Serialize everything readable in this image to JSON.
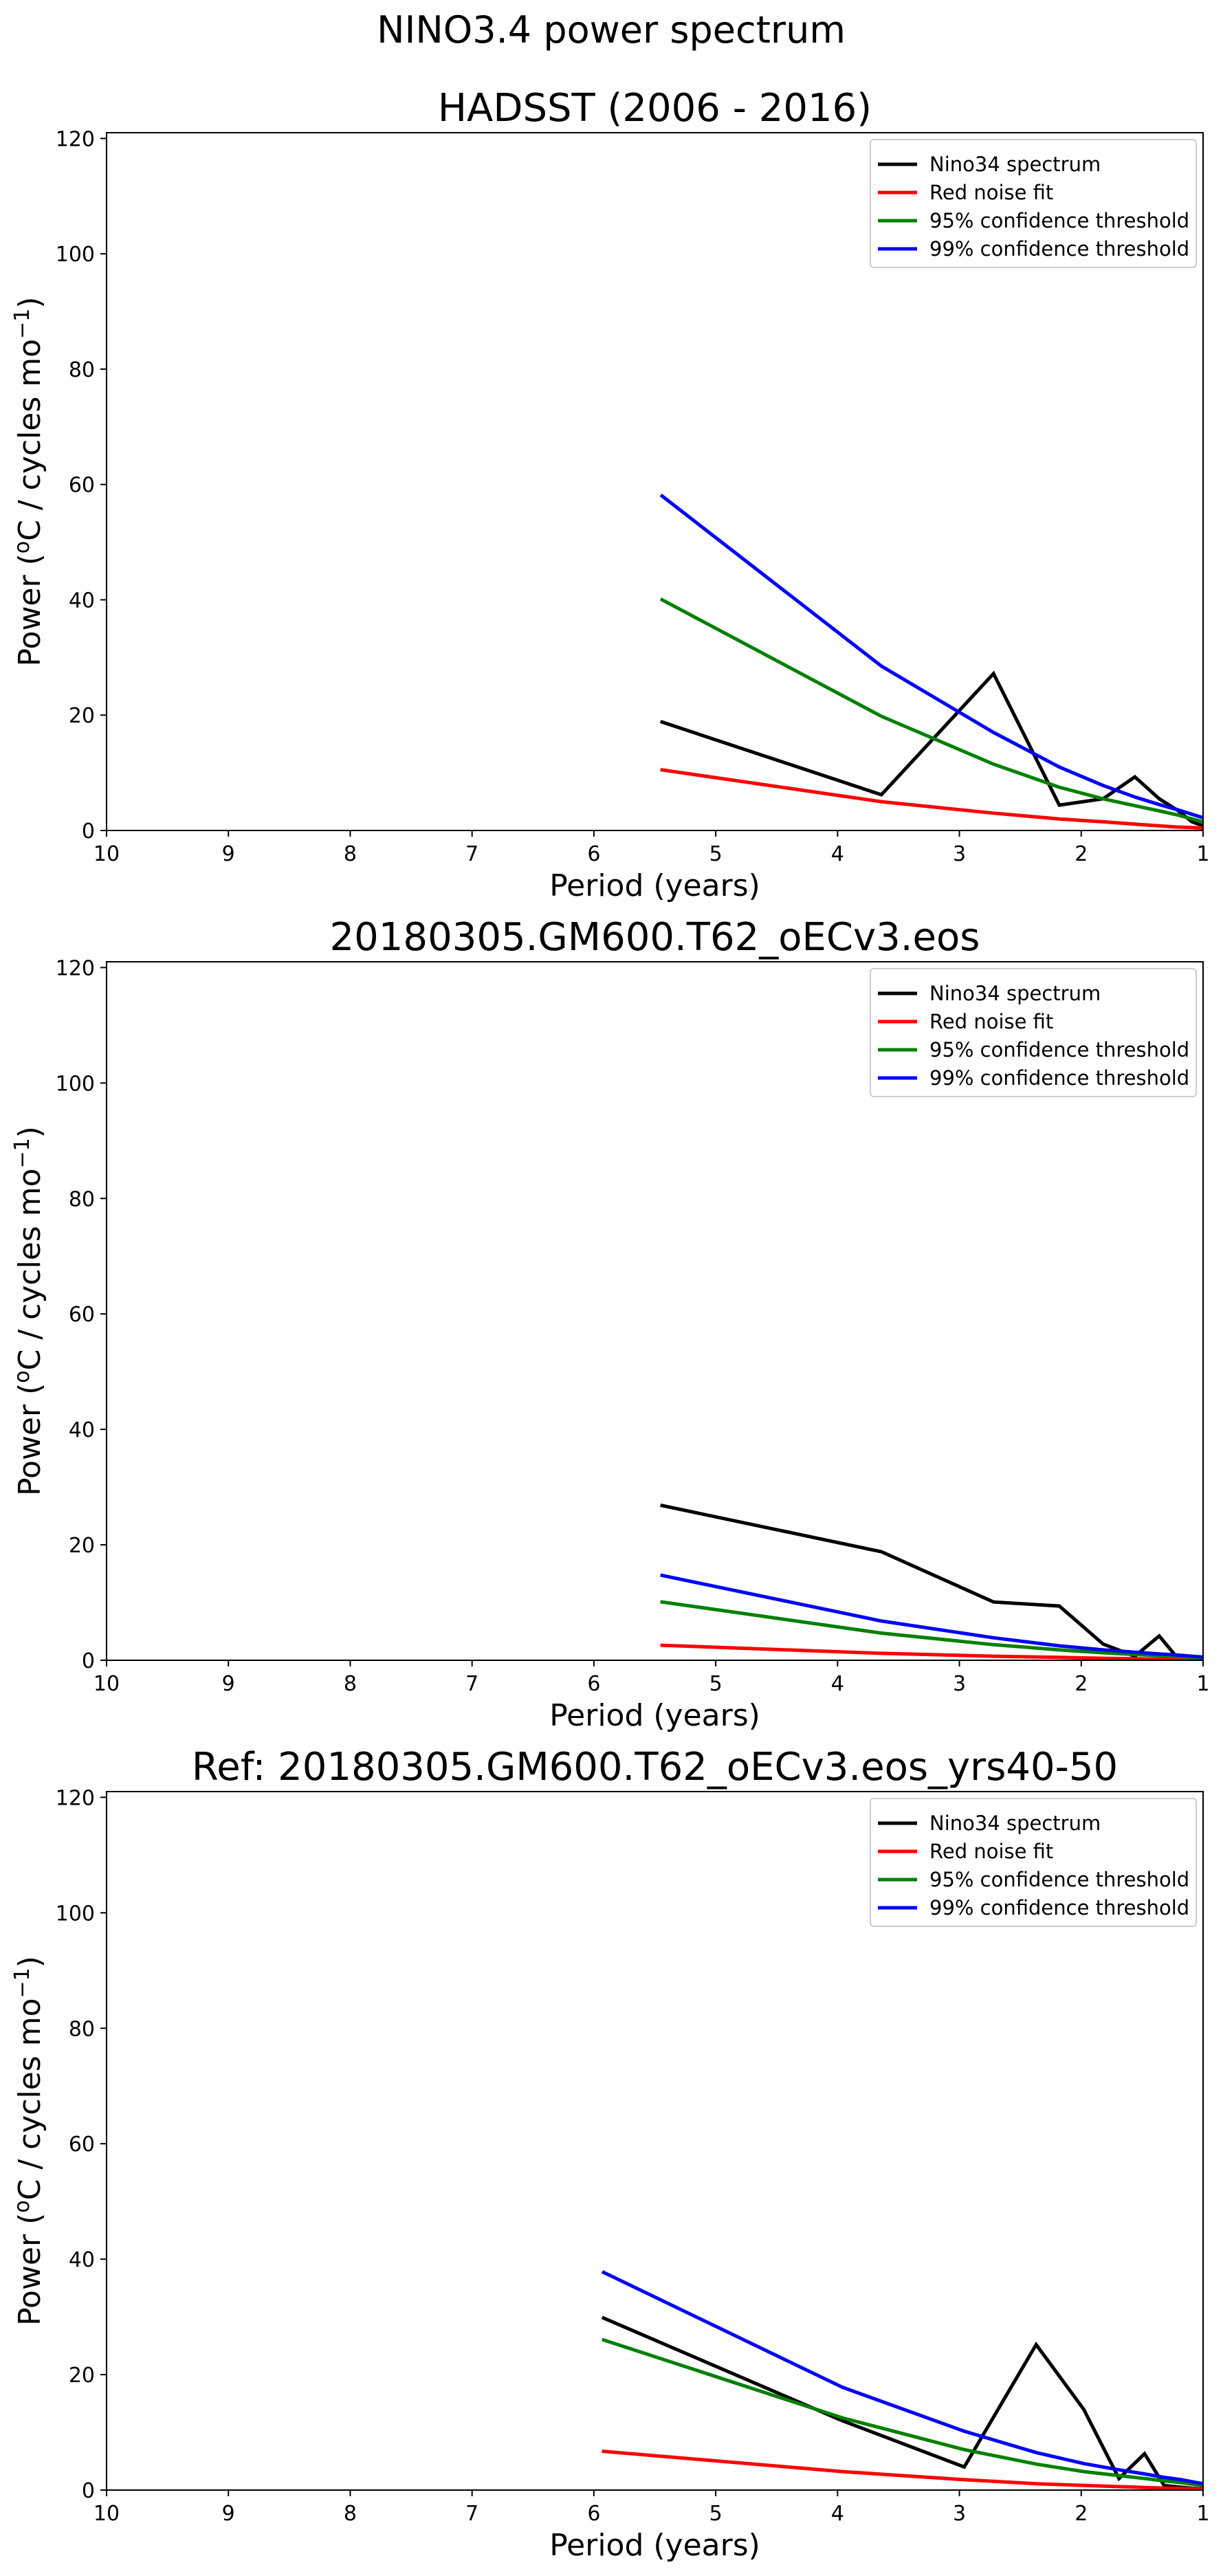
{
  "figure": {
    "suptitle": "NINO3.4 power spectrum"
  },
  "chart_data": [
    {
      "type": "line",
      "title": "HADSST (2006 - 2016)",
      "xlabel": "Period (years)",
      "ylabel": "Power (",
      "ylabel_sup1": "o",
      "ylabel_mid": "C / cycles mo",
      "ylabel_sup2": "−1",
      "ylabel_end": ")",
      "xlim": [
        10,
        1
      ],
      "ylim": [
        0,
        121
      ],
      "xticks": [
        10,
        9,
        8,
        7,
        6,
        5,
        4,
        3,
        2,
        1
      ],
      "xtick_labels": [
        "10",
        "9",
        "8",
        "7",
        "6",
        "5",
        "4",
        "3",
        "2",
        "1"
      ],
      "yticks": [
        0,
        20,
        40,
        60,
        80,
        100,
        120
      ],
      "ytick_labels": [
        "0",
        "20",
        "40",
        "60",
        "80",
        "100",
        "120"
      ],
      "grid": false,
      "legend": "upper-right",
      "series": [
        {
          "name": "Nino34 spectrum",
          "color": "#000000",
          "x": [
            5.44,
            3.64,
            2.72,
            2.18,
            1.82,
            1.56,
            1.36,
            1.21,
            1.09,
            1.0
          ],
          "y": [
            18.8,
            6.2,
            27.2,
            4.4,
            5.5,
            9.3,
            5.5,
            3.5,
            1.5,
            0.8
          ]
        },
        {
          "name": "Red noise fit",
          "color": "#ff0000",
          "x": [
            5.44,
            3.64,
            2.72,
            2.18,
            1.82,
            1.56,
            1.36,
            1.21,
            1.09,
            1.0
          ],
          "y": [
            10.5,
            5.0,
            3.0,
            2.0,
            1.5,
            1.1,
            0.8,
            0.6,
            0.5,
            0.4
          ]
        },
        {
          "name": "95% confidence threshold",
          "color": "#008000",
          "x": [
            5.44,
            3.64,
            2.72,
            2.18,
            1.82,
            1.56,
            1.36,
            1.21,
            1.09,
            1.0
          ],
          "y": [
            40.0,
            19.8,
            11.5,
            7.5,
            5.5,
            4.3,
            3.4,
            2.7,
            2.0,
            1.5
          ]
        },
        {
          "name": "99% confidence threshold",
          "color": "#0000ff",
          "x": [
            5.44,
            3.64,
            2.72,
            2.18,
            1.82,
            1.56,
            1.36,
            1.21,
            1.09,
            1.0
          ],
          "y": [
            58.0,
            28.5,
            17.0,
            11.0,
            7.8,
            5.8,
            4.5,
            3.6,
            2.8,
            2.2
          ]
        }
      ]
    },
    {
      "type": "line",
      "title": "20180305.GM600.T62_oECv3.eos",
      "xlabel": "Period (years)",
      "ylabel": "Power (",
      "ylabel_sup1": "o",
      "ylabel_mid": "C / cycles mo",
      "ylabel_sup2": "−1",
      "ylabel_end": ")",
      "xlim": [
        10,
        1
      ],
      "ylim": [
        0,
        121
      ],
      "xticks": [
        10,
        9,
        8,
        7,
        6,
        5,
        4,
        3,
        2,
        1
      ],
      "xtick_labels": [
        "10",
        "9",
        "8",
        "7",
        "6",
        "5",
        "4",
        "3",
        "2",
        "1"
      ],
      "yticks": [
        0,
        20,
        40,
        60,
        80,
        100,
        120
      ],
      "ytick_labels": [
        "0",
        "20",
        "40",
        "60",
        "80",
        "100",
        "120"
      ],
      "grid": false,
      "legend": "upper-right",
      "series": [
        {
          "name": "Nino34 spectrum",
          "color": "#000000",
          "x": [
            5.44,
            3.64,
            2.72,
            2.18,
            1.82,
            1.56,
            1.36,
            1.21,
            1.09,
            1.0
          ],
          "y": [
            26.8,
            18.8,
            10.1,
            9.4,
            2.8,
            0.7,
            4.2,
            0.4,
            0.3,
            0.2
          ]
        },
        {
          "name": "Red noise fit",
          "color": "#ff0000",
          "x": [
            5.44,
            3.64,
            2.72,
            2.18,
            1.82,
            1.56,
            1.36,
            1.21,
            1.09,
            1.0
          ],
          "y": [
            2.6,
            1.2,
            0.7,
            0.5,
            0.35,
            0.27,
            0.21,
            0.17,
            0.14,
            0.12
          ]
        },
        {
          "name": "95% confidence threshold",
          "color": "#008000",
          "x": [
            5.44,
            3.64,
            2.72,
            2.18,
            1.82,
            1.56,
            1.36,
            1.21,
            1.09,
            1.0
          ],
          "y": [
            10.1,
            4.7,
            2.7,
            1.8,
            1.3,
            1.0,
            0.8,
            0.65,
            0.5,
            0.4
          ]
        },
        {
          "name": "99% confidence threshold",
          "color": "#0000ff",
          "x": [
            5.44,
            3.64,
            2.72,
            2.18,
            1.82,
            1.56,
            1.36,
            1.21,
            1.09,
            1.0
          ],
          "y": [
            14.7,
            6.8,
            3.9,
            2.5,
            1.8,
            1.4,
            1.1,
            0.9,
            0.7,
            0.55
          ]
        }
      ]
    },
    {
      "type": "line",
      "title": "Ref: 20180305.GM600.T62_oECv3.eos_yrs40-50",
      "xlabel": "Period (years)",
      "ylabel": "Power (",
      "ylabel_sup1": "o",
      "ylabel_mid": "C / cycles mo",
      "ylabel_sup2": "−1",
      "ylabel_end": ")",
      "xlim": [
        10,
        1
      ],
      "ylim": [
        0,
        121
      ],
      "xticks": [
        10,
        9,
        8,
        7,
        6,
        5,
        4,
        3,
        2,
        1
      ],
      "xtick_labels": [
        "10",
        "9",
        "8",
        "7",
        "6",
        "5",
        "4",
        "3",
        "2",
        "1"
      ],
      "yticks": [
        0,
        20,
        40,
        60,
        80,
        100,
        120
      ],
      "ytick_labels": [
        "0",
        "20",
        "40",
        "60",
        "80",
        "100",
        "120"
      ],
      "grid": false,
      "legend": "upper-right",
      "series": [
        {
          "name": "Nino34 spectrum",
          "color": "#000000",
          "x": [
            5.92,
            3.96,
            2.96,
            2.37,
            1.98,
            1.69,
            1.48,
            1.32,
            1.18,
            1.08,
            1.0
          ],
          "y": [
            29.8,
            12.0,
            4.0,
            25.2,
            14.0,
            2.0,
            6.3,
            0.8,
            0.5,
            0.3,
            0.2
          ]
        },
        {
          "name": "Red noise fit",
          "color": "#ff0000",
          "x": [
            5.92,
            3.96,
            2.96,
            2.37,
            1.98,
            1.69,
            1.48,
            1.32,
            1.18,
            1.08,
            1.0
          ],
          "y": [
            6.7,
            3.2,
            1.8,
            1.1,
            0.8,
            0.6,
            0.45,
            0.35,
            0.28,
            0.22,
            0.18
          ]
        },
        {
          "name": "95% confidence threshold",
          "color": "#008000",
          "x": [
            5.92,
            3.96,
            2.96,
            2.37,
            1.98,
            1.69,
            1.48,
            1.32,
            1.18,
            1.08,
            1.0
          ],
          "y": [
            26.0,
            12.5,
            7.0,
            4.5,
            3.2,
            2.5,
            2.0,
            1.6,
            1.3,
            1.0,
            0.8
          ]
        },
        {
          "name": "99% confidence threshold",
          "color": "#0000ff",
          "x": [
            5.92,
            3.96,
            2.96,
            2.37,
            1.98,
            1.69,
            1.48,
            1.32,
            1.18,
            1.08,
            1.0
          ],
          "y": [
            37.7,
            17.8,
            10.2,
            6.5,
            4.6,
            3.5,
            2.8,
            2.2,
            1.8,
            1.4,
            1.1
          ]
        }
      ]
    }
  ]
}
